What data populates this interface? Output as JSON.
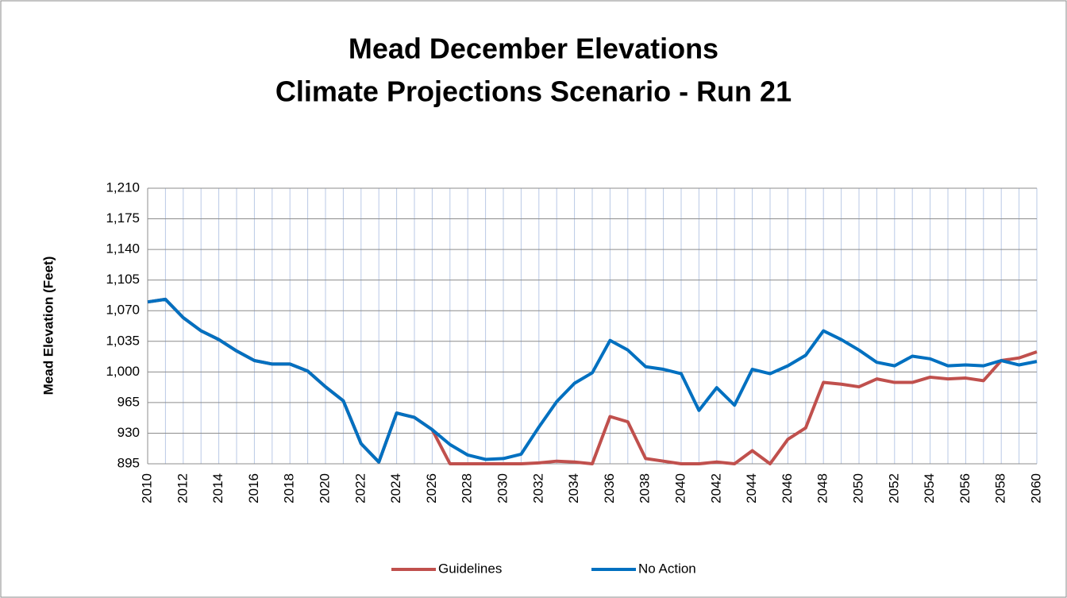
{
  "chart_data": {
    "type": "line",
    "title": "Mead December Elevations",
    "subtitle": "Climate Projections Scenario - Run 21",
    "y_label": "Mead Elevation (Feet)",
    "x": [
      2010,
      2011,
      2012,
      2013,
      2014,
      2015,
      2016,
      2017,
      2018,
      2019,
      2020,
      2021,
      2022,
      2023,
      2024,
      2025,
      2026,
      2027,
      2028,
      2029,
      2030,
      2031,
      2032,
      2033,
      2034,
      2035,
      2036,
      2037,
      2038,
      2039,
      2040,
      2041,
      2042,
      2043,
      2044,
      2045,
      2046,
      2047,
      2048,
      2049,
      2050,
      2051,
      2052,
      2053,
      2054,
      2055,
      2056,
      2057,
      2058,
      2059,
      2060
    ],
    "xlim": [
      2010,
      2060
    ],
    "xticks": [
      2010,
      2012,
      2014,
      2016,
      2018,
      2020,
      2022,
      2024,
      2026,
      2028,
      2030,
      2032,
      2034,
      2036,
      2038,
      2040,
      2042,
      2044,
      2046,
      2048,
      2050,
      2052,
      2054,
      2056,
      2058,
      2060
    ],
    "ylim": [
      895,
      1210
    ],
    "yticks": [
      895,
      930,
      965,
      {
        "value": 1000,
        "label": "1,000"
      },
      {
        "value": 1035,
        "label": "1,035"
      },
      {
        "value": 1070,
        "label": "1,070"
      },
      {
        "value": 1105,
        "label": "1,105"
      },
      {
        "value": 1140,
        "label": "1,140"
      },
      {
        "value": 1175,
        "label": "1,175"
      },
      {
        "value": 1210,
        "label": "1,210"
      }
    ],
    "grid": true,
    "legend": "bottom",
    "series": [
      {
        "name": "Guidelines",
        "color": "#c0504d",
        "values": [
          1080,
          1083,
          1062,
          1047,
          1037,
          1024,
          1013,
          1009,
          1009,
          1001,
          983,
          967,
          918,
          897,
          953,
          948,
          934,
          895,
          895,
          895,
          895,
          895,
          896,
          898,
          897,
          895,
          949,
          943,
          901,
          898,
          895,
          895,
          897,
          895,
          910,
          895,
          923,
          936,
          988,
          986,
          983,
          992,
          988,
          988,
          994,
          992,
          993,
          990,
          1013,
          1016,
          1023
        ]
      },
      {
        "name": "No Action",
        "color": "#0070c0",
        "values": [
          1080,
          1083,
          1062,
          1047,
          1037,
          1024,
          1013,
          1009,
          1009,
          1001,
          983,
          967,
          918,
          897,
          953,
          948,
          934,
          917,
          905,
          900,
          901,
          906,
          937,
          966,
          987,
          999,
          1036,
          1025,
          1006,
          1003,
          998,
          956,
          982,
          962,
          1003,
          998,
          1007,
          1019,
          1047,
          1037,
          1025,
          1011,
          1007,
          1018,
          1015,
          1007,
          1008,
          1007,
          1013,
          1008,
          1012
        ]
      }
    ]
  }
}
